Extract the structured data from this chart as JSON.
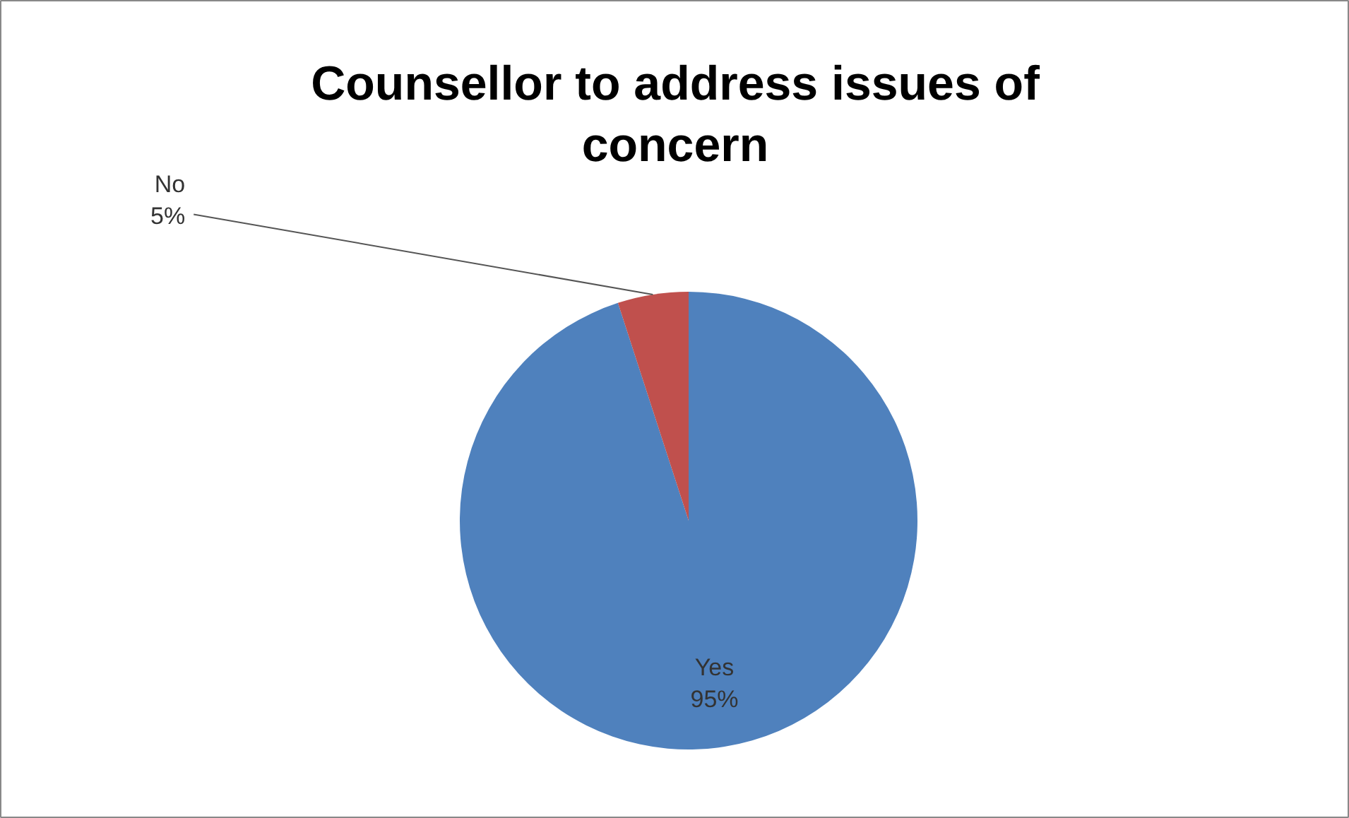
{
  "chart_data": {
    "type": "pie",
    "title": "Counsellor to address issues of concern",
    "categories": [
      "Yes",
      "No"
    ],
    "values": [
      95,
      5
    ],
    "colors": [
      "#4f81bd",
      "#c0504d"
    ],
    "value_labels": [
      "95%",
      "5%"
    ]
  }
}
